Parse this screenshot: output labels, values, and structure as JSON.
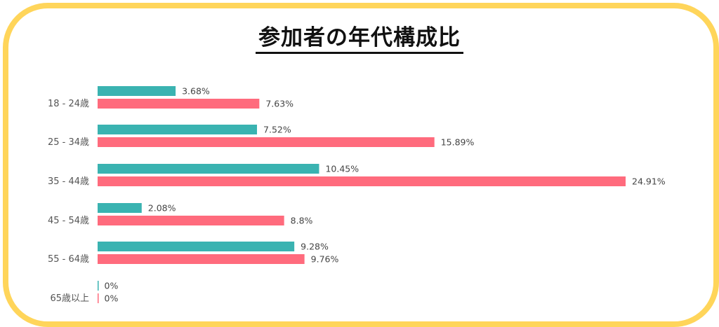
{
  "title": "参加者の年代構成比",
  "chart_data": {
    "type": "bar",
    "orientation": "horizontal",
    "categories": [
      "18 - 24歳",
      "25 - 34歳",
      "35 - 44歳",
      "45 - 54歳",
      "55 - 64歳",
      "65歳以上"
    ],
    "series": [
      {
        "values": [
          3.68,
          7.52,
          10.45,
          2.08,
          9.28,
          0
        ],
        "labels": [
          "3.68%",
          "7.52%",
          "10.45%",
          "2.08%",
          "9.28%",
          "0%"
        ],
        "color": "#3ab3b1"
      },
      {
        "values": [
          7.63,
          15.89,
          24.91,
          8.8,
          9.76,
          0
        ],
        "labels": [
          "7.63%",
          "15.89%",
          "24.91%",
          "8.8%",
          "9.76%",
          "0%"
        ],
        "color": "#ff6b7d"
      }
    ],
    "xlim": [
      0,
      24.91
    ],
    "grid": false,
    "legend": "none"
  }
}
